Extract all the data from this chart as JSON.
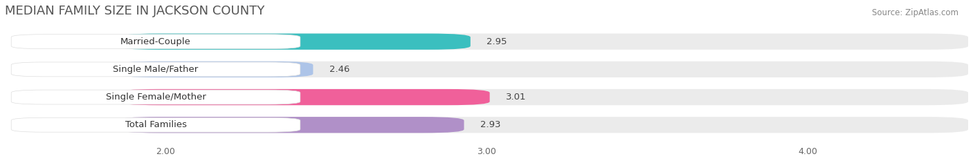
{
  "title": "MEDIAN FAMILY SIZE IN JACKSON COUNTY",
  "source": "Source: ZipAtlas.com",
  "categories": [
    "Married-Couple",
    "Single Male/Father",
    "Single Female/Mother",
    "Total Families"
  ],
  "values": [
    2.95,
    2.46,
    3.01,
    2.93
  ],
  "bar_colors": [
    "#3bbfbf",
    "#adc4e8",
    "#f0609a",
    "#b090c8"
  ],
  "xlim_min": 1.5,
  "xlim_max": 4.5,
  "xstart": 1.85,
  "xticks": [
    2.0,
    3.0,
    4.0
  ],
  "xtick_labels": [
    "2.00",
    "3.00",
    "4.00"
  ],
  "background_color": "#ffffff",
  "bar_background_color": "#ebebeb",
  "bar_height": 0.58,
  "label_fontsize": 9.5,
  "value_fontsize": 9.5,
  "title_fontsize": 13,
  "source_fontsize": 8.5
}
